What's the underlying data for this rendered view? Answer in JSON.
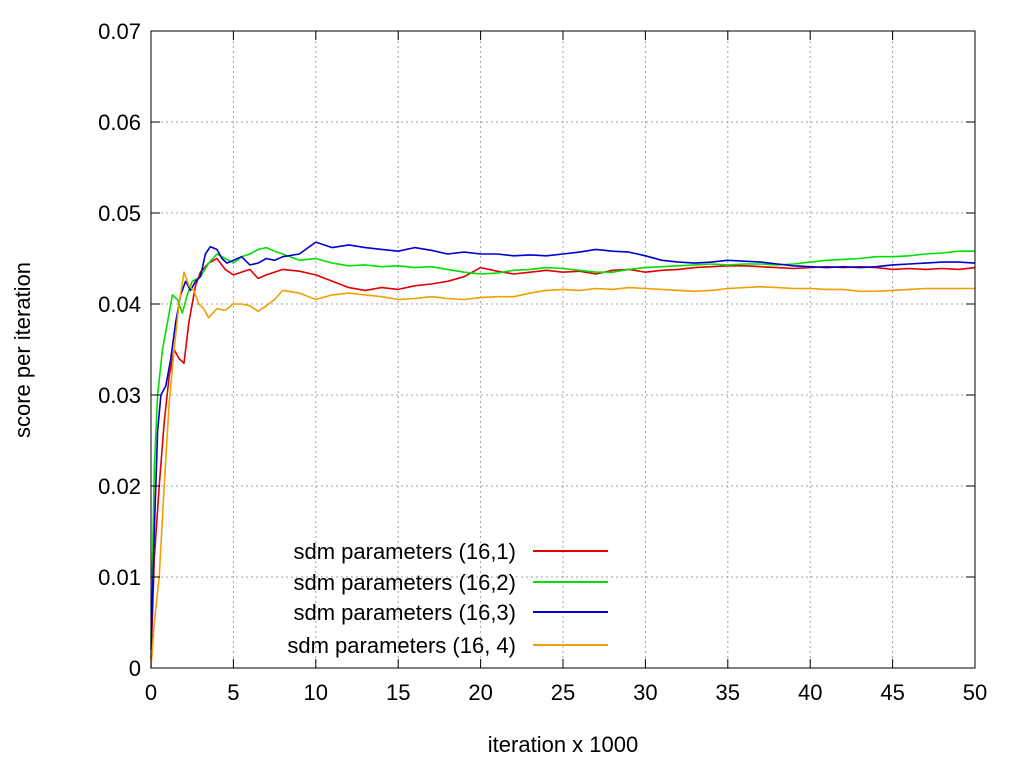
{
  "chart_data": {
    "type": "line",
    "title": "",
    "xlabel": "iteration x 1000",
    "ylabel": "score per iteration",
    "xlim": [
      0,
      50
    ],
    "ylim": [
      0,
      0.07
    ],
    "xticks": [
      0,
      5,
      10,
      15,
      20,
      25,
      30,
      35,
      40,
      45,
      50
    ],
    "yticks": [
      0,
      0.01,
      0.02,
      0.03,
      0.04,
      0.05,
      0.06,
      0.07
    ],
    "xtick_labels": [
      "0",
      "5",
      "10",
      "15",
      "20",
      "25",
      "30",
      "35",
      "40",
      "45",
      "50"
    ],
    "ytick_labels": [
      "0",
      "0.01",
      "0.02",
      "0.03",
      "0.04",
      "0.05",
      "0.06",
      "0.07"
    ],
    "grid": true,
    "legend_position": "bottom-left",
    "series": [
      {
        "name": "sdm parameters (16,1)",
        "color": "#e00000",
        "points": [
          [
            0,
            0.001
          ],
          [
            0.2,
            0.012
          ],
          [
            0.5,
            0.02
          ],
          [
            0.8,
            0.027
          ],
          [
            1.1,
            0.032
          ],
          [
            1.4,
            0.035
          ],
          [
            1.7,
            0.034
          ],
          [
            2.0,
            0.0335
          ],
          [
            2.3,
            0.038
          ],
          [
            2.7,
            0.042
          ],
          [
            3.0,
            0.0435
          ],
          [
            3.5,
            0.0445
          ],
          [
            4.0,
            0.045
          ],
          [
            4.5,
            0.0438
          ],
          [
            5.0,
            0.0432
          ],
          [
            6.0,
            0.0438
          ],
          [
            6.5,
            0.0428
          ],
          [
            7.0,
            0.0432
          ],
          [
            8.0,
            0.0438
          ],
          [
            9.0,
            0.0436
          ],
          [
            10.0,
            0.0432
          ],
          [
            11.0,
            0.0425
          ],
          [
            12.0,
            0.0418
          ],
          [
            13.0,
            0.0415
          ],
          [
            14.0,
            0.0418
          ],
          [
            15.0,
            0.0416
          ],
          [
            16.0,
            0.042
          ],
          [
            17.0,
            0.0422
          ],
          [
            18.0,
            0.0425
          ],
          [
            19.0,
            0.043
          ],
          [
            20.0,
            0.044
          ],
          [
            21.0,
            0.0436
          ],
          [
            22.0,
            0.0433
          ],
          [
            23.0,
            0.0435
          ],
          [
            24.0,
            0.0437
          ],
          [
            25.0,
            0.0435
          ],
          [
            26.0,
            0.0436
          ],
          [
            27.0,
            0.0433
          ],
          [
            28.0,
            0.0437
          ],
          [
            29.0,
            0.0438
          ],
          [
            30.0,
            0.0435
          ],
          [
            31.0,
            0.0437
          ],
          [
            32.0,
            0.0438
          ],
          [
            33.0,
            0.044
          ],
          [
            34.0,
            0.0441
          ],
          [
            35.0,
            0.0442
          ],
          [
            36.0,
            0.0442
          ],
          [
            37.0,
            0.0441
          ],
          [
            38.0,
            0.044
          ],
          [
            39.0,
            0.0439
          ],
          [
            40.0,
            0.044
          ],
          [
            41.0,
            0.0441
          ],
          [
            42.0,
            0.044
          ],
          [
            43.0,
            0.0441
          ],
          [
            44.0,
            0.044
          ],
          [
            45.0,
            0.0438
          ],
          [
            46.0,
            0.0439
          ],
          [
            47.0,
            0.0438
          ],
          [
            48.0,
            0.0439
          ],
          [
            49.0,
            0.0438
          ],
          [
            50.0,
            0.044
          ]
        ]
      },
      {
        "name": "sdm parameters (16,2)",
        "color": "#00e000",
        "points": [
          [
            0,
            0.003
          ],
          [
            0.2,
            0.022
          ],
          [
            0.4,
            0.03
          ],
          [
            0.7,
            0.035
          ],
          [
            1.0,
            0.038
          ],
          [
            1.3,
            0.041
          ],
          [
            1.6,
            0.0405
          ],
          [
            1.9,
            0.039
          ],
          [
            2.2,
            0.041
          ],
          [
            2.5,
            0.0425
          ],
          [
            3.0,
            0.043
          ],
          [
            3.5,
            0.0445
          ],
          [
            4.0,
            0.0455
          ],
          [
            4.5,
            0.045
          ],
          [
            5.0,
            0.0445
          ],
          [
            5.5,
            0.0452
          ],
          [
            6.0,
            0.0455
          ],
          [
            6.5,
            0.046
          ],
          [
            7.0,
            0.0462
          ],
          [
            7.5,
            0.0458
          ],
          [
            8.0,
            0.0455
          ],
          [
            9.0,
            0.0448
          ],
          [
            10.0,
            0.045
          ],
          [
            11.0,
            0.0445
          ],
          [
            12.0,
            0.0442
          ],
          [
            13.0,
            0.0443
          ],
          [
            14.0,
            0.0441
          ],
          [
            15.0,
            0.0442
          ],
          [
            16.0,
            0.044
          ],
          [
            17.0,
            0.0441
          ],
          [
            18.0,
            0.0438
          ],
          [
            19.0,
            0.0435
          ],
          [
            20.0,
            0.0433
          ],
          [
            21.0,
            0.0434
          ],
          [
            22.0,
            0.0437
          ],
          [
            23.0,
            0.0438
          ],
          [
            24.0,
            0.044
          ],
          [
            25.0,
            0.0439
          ],
          [
            26.0,
            0.0437
          ],
          [
            27.0,
            0.0435
          ],
          [
            28.0,
            0.0435
          ],
          [
            29.0,
            0.0438
          ],
          [
            30.0,
            0.044
          ],
          [
            31.0,
            0.0441
          ],
          [
            32.0,
            0.0442
          ],
          [
            33.0,
            0.0443
          ],
          [
            34.0,
            0.0444
          ],
          [
            35.0,
            0.0443
          ],
          [
            36.0,
            0.0444
          ],
          [
            37.0,
            0.0444
          ],
          [
            38.0,
            0.0443
          ],
          [
            39.0,
            0.0444
          ],
          [
            40.0,
            0.0446
          ],
          [
            41.0,
            0.0448
          ],
          [
            42.0,
            0.0449
          ],
          [
            43.0,
            0.045
          ],
          [
            44.0,
            0.0452
          ],
          [
            45.0,
            0.0452
          ],
          [
            46.0,
            0.0453
          ],
          [
            47.0,
            0.0455
          ],
          [
            48.0,
            0.0456
          ],
          [
            49.0,
            0.0458
          ],
          [
            50.0,
            0.0458
          ]
        ]
      },
      {
        "name": "sdm parameters (16,3)",
        "color": "#0000d0",
        "points": [
          [
            0,
            0.002
          ],
          [
            0.2,
            0.015
          ],
          [
            0.4,
            0.026
          ],
          [
            0.6,
            0.03
          ],
          [
            0.9,
            0.031
          ],
          [
            1.2,
            0.034
          ],
          [
            1.5,
            0.038
          ],
          [
            1.8,
            0.041
          ],
          [
            2.1,
            0.0425
          ],
          [
            2.4,
            0.0415
          ],
          [
            2.7,
            0.0425
          ],
          [
            3.0,
            0.043
          ],
          [
            3.3,
            0.0455
          ],
          [
            3.6,
            0.0463
          ],
          [
            4.0,
            0.046
          ],
          [
            4.3,
            0.045
          ],
          [
            4.6,
            0.0445
          ],
          [
            5.0,
            0.0448
          ],
          [
            5.5,
            0.0452
          ],
          [
            6.0,
            0.0443
          ],
          [
            6.5,
            0.0445
          ],
          [
            7.0,
            0.045
          ],
          [
            7.5,
            0.0448
          ],
          [
            8.0,
            0.0452
          ],
          [
            9.0,
            0.0455
          ],
          [
            10.0,
            0.0468
          ],
          [
            11.0,
            0.0462
          ],
          [
            12.0,
            0.0465
          ],
          [
            13.0,
            0.0462
          ],
          [
            14.0,
            0.046
          ],
          [
            15.0,
            0.0458
          ],
          [
            16.0,
            0.0462
          ],
          [
            17.0,
            0.0459
          ],
          [
            18.0,
            0.0455
          ],
          [
            19.0,
            0.0457
          ],
          [
            20.0,
            0.0455
          ],
          [
            21.0,
            0.0455
          ],
          [
            22.0,
            0.0453
          ],
          [
            23.0,
            0.0454
          ],
          [
            24.0,
            0.0453
          ],
          [
            25.0,
            0.0455
          ],
          [
            26.0,
            0.0457
          ],
          [
            27.0,
            0.046
          ],
          [
            28.0,
            0.0458
          ],
          [
            29.0,
            0.0457
          ],
          [
            30.0,
            0.0453
          ],
          [
            31.0,
            0.0448
          ],
          [
            32.0,
            0.0446
          ],
          [
            33.0,
            0.0445
          ],
          [
            34.0,
            0.0446
          ],
          [
            35.0,
            0.0448
          ],
          [
            36.0,
            0.0447
          ],
          [
            37.0,
            0.0446
          ],
          [
            38.0,
            0.0444
          ],
          [
            39.0,
            0.0442
          ],
          [
            40.0,
            0.0441
          ],
          [
            41.0,
            0.044
          ],
          [
            42.0,
            0.0441
          ],
          [
            43.0,
            0.044
          ],
          [
            44.0,
            0.0441
          ],
          [
            45.0,
            0.0443
          ],
          [
            46.0,
            0.0444
          ],
          [
            47.0,
            0.0445
          ],
          [
            48.0,
            0.0446
          ],
          [
            49.0,
            0.0446
          ],
          [
            50.0,
            0.0445
          ]
        ]
      },
      {
        "name": "sdm parameters (16, 4)",
        "color": "#f0a000",
        "points": [
          [
            0,
            0.0
          ],
          [
            0.2,
            0.005
          ],
          [
            0.5,
            0.01
          ],
          [
            0.8,
            0.02
          ],
          [
            1.1,
            0.029
          ],
          [
            1.4,
            0.035
          ],
          [
            1.7,
            0.04
          ],
          [
            2.0,
            0.0435
          ],
          [
            2.3,
            0.042
          ],
          [
            2.6,
            0.0415
          ],
          [
            2.9,
            0.04
          ],
          [
            3.2,
            0.0395
          ],
          [
            3.5,
            0.0385
          ],
          [
            4.0,
            0.0395
          ],
          [
            4.5,
            0.0393
          ],
          [
            5.0,
            0.04
          ],
          [
            5.5,
            0.04
          ],
          [
            6.0,
            0.0398
          ],
          [
            6.5,
            0.0392
          ],
          [
            7.0,
            0.0398
          ],
          [
            7.5,
            0.0405
          ],
          [
            8.0,
            0.0415
          ],
          [
            9.0,
            0.0412
          ],
          [
            10.0,
            0.0405
          ],
          [
            11.0,
            0.041
          ],
          [
            12.0,
            0.0412
          ],
          [
            13.0,
            0.041
          ],
          [
            14.0,
            0.0408
          ],
          [
            15.0,
            0.0405
          ],
          [
            16.0,
            0.0406
          ],
          [
            17.0,
            0.0408
          ],
          [
            18.0,
            0.0406
          ],
          [
            19.0,
            0.0405
          ],
          [
            20.0,
            0.0407
          ],
          [
            21.0,
            0.0408
          ],
          [
            22.0,
            0.0408
          ],
          [
            23.0,
            0.0412
          ],
          [
            24.0,
            0.0415
          ],
          [
            25.0,
            0.0416
          ],
          [
            26.0,
            0.0415
          ],
          [
            27.0,
            0.0417
          ],
          [
            28.0,
            0.0416
          ],
          [
            29.0,
            0.0418
          ],
          [
            30.0,
            0.0417
          ],
          [
            31.0,
            0.0416
          ],
          [
            32.0,
            0.0415
          ],
          [
            33.0,
            0.0414
          ],
          [
            34.0,
            0.0415
          ],
          [
            35.0,
            0.0417
          ],
          [
            36.0,
            0.0418
          ],
          [
            37.0,
            0.0419
          ],
          [
            38.0,
            0.0418
          ],
          [
            39.0,
            0.0417
          ],
          [
            40.0,
            0.0417
          ],
          [
            41.0,
            0.0416
          ],
          [
            42.0,
            0.0416
          ],
          [
            43.0,
            0.0414
          ],
          [
            44.0,
            0.0414
          ],
          [
            45.0,
            0.0415
          ],
          [
            46.0,
            0.0416
          ],
          [
            47.0,
            0.0417
          ],
          [
            48.0,
            0.0417
          ],
          [
            49.0,
            0.0417
          ],
          [
            50.0,
            0.0417
          ]
        ]
      }
    ]
  }
}
